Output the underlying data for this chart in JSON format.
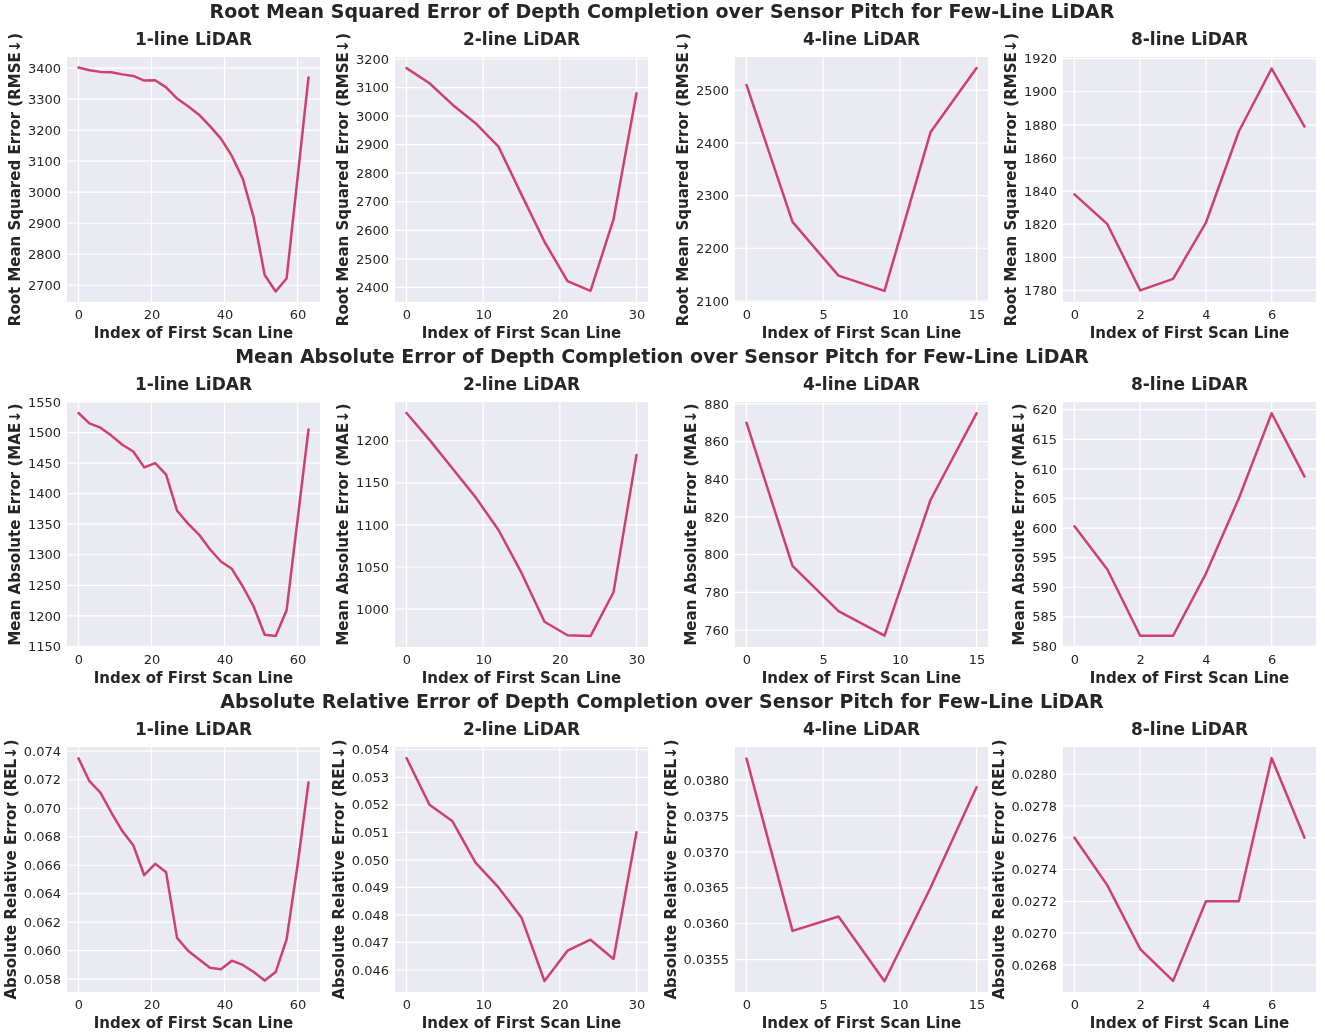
{
  "chart_data": [
    {
      "type": "line",
      "title": "1-line LiDAR",
      "annotations": [
        "Root Mean Squared Error of Depth Completion over Sensor Pitch for Few-Line LiDAR"
      ],
      "xlabel": "Index of First Scan Line",
      "ylabel": "Root Mean Squared Error (RMSE↓)",
      "x": [
        0,
        3,
        6,
        9,
        12,
        15,
        18,
        21,
        24,
        27,
        30,
        33,
        36,
        39,
        42,
        45,
        48,
        51,
        54,
        57,
        60,
        63
      ],
      "series": [
        {
          "color": "#d0406f",
          "values": [
            3402,
            3393,
            3388,
            3387,
            3380,
            3375,
            3360,
            3361,
            3338,
            3302,
            3277,
            3250,
            3213,
            3173,
            3117,
            3043,
            2918,
            2733,
            2680,
            2722,
            3046,
            3370
          ]
        }
      ],
      "xlim": [
        -3.15,
        66.15
      ],
      "xticks": [
        0,
        20,
        40,
        60
      ],
      "ylim": [
        2646,
        3436
      ],
      "yticks": [
        2700,
        2800,
        2900,
        3000,
        3100,
        3200,
        3300,
        3400
      ],
      "grid": true
    },
    {
      "type": "line",
      "title": "2-line LiDAR",
      "xlabel": "Index of First Scan Line",
      "ylabel": "Root Mean Squared Error (RMSE↓)",
      "x": [
        0,
        3,
        6,
        9,
        12,
        15,
        18,
        21,
        24,
        27,
        30
      ],
      "series": [
        {
          "color": "#d0406f",
          "values": [
            3168,
            3115,
            3040,
            2975,
            2893,
            2725,
            2560,
            2422,
            2388,
            2638,
            3080
          ]
        }
      ],
      "xlim": [
        -1.5,
        31.5
      ],
      "xticks": [
        0,
        10,
        20,
        30
      ],
      "ylim": [
        2349,
        3207
      ],
      "yticks": [
        2400,
        2500,
        2600,
        2700,
        2800,
        2900,
        3000,
        3100,
        3200
      ],
      "grid": true
    },
    {
      "type": "line",
      "title": "4-line LiDAR",
      "xlabel": "Index of First Scan Line",
      "ylabel": "Root Mean Squared Error (RMSE↓)",
      "x": [
        0,
        3,
        6,
        9,
        12,
        15
      ],
      "series": [
        {
          "color": "#d0406f",
          "values": [
            2510,
            2250,
            2148,
            2119,
            2420,
            2542
          ]
        }
      ],
      "xlim": [
        -0.75,
        15.75
      ],
      "xticks": [
        0,
        5,
        10,
        15
      ],
      "ylim": [
        2098,
        2563
      ],
      "yticks": [
        2100,
        2200,
        2300,
        2400,
        2500
      ],
      "grid": true
    },
    {
      "type": "line",
      "title": "8-line LiDAR",
      "xlabel": "Index of First Scan Line",
      "ylabel": "Root Mean Squared Error (RMSE↓)",
      "x": [
        0,
        1,
        2,
        3,
        4,
        5,
        6,
        7
      ],
      "series": [
        {
          "color": "#d0406f",
          "values": [
            1838,
            1820,
            1780,
            1787,
            1821,
            1876,
            1914,
            1879
          ]
        }
      ],
      "xlim": [
        -0.35,
        7.35
      ],
      "xticks": [
        0,
        2,
        4,
        6
      ],
      "ylim": [
        1773,
        1921
      ],
      "yticks": [
        1780,
        1800,
        1820,
        1840,
        1860,
        1880,
        1900,
        1920
      ],
      "grid": true
    },
    {
      "type": "line",
      "title": "1-line LiDAR",
      "annotations": [
        "Mean Absolute Error of Depth Completion over Sensor Pitch for Few-Line LiDAR"
      ],
      "xlabel": "Index of First Scan Line",
      "ylabel": "Mean Absolute Error (MAE↓)",
      "x": [
        0,
        3,
        6,
        9,
        12,
        15,
        18,
        21,
        24,
        27,
        30,
        33,
        36,
        39,
        42,
        45,
        48,
        51,
        54,
        57,
        60,
        63
      ],
      "series": [
        {
          "color": "#d0406f",
          "values": [
            1532,
            1515,
            1508,
            1495,
            1480,
            1469,
            1443,
            1450,
            1431,
            1372,
            1351,
            1333,
            1309,
            1289,
            1277,
            1248,
            1215,
            1169,
            1167,
            1209,
            1357,
            1505
          ]
        }
      ],
      "xlim": [
        -3.15,
        66.15
      ],
      "xticks": [
        0,
        20,
        40,
        60
      ],
      "ylim": [
        1149,
        1550
      ],
      "yticks": [
        1150,
        1200,
        1250,
        1300,
        1350,
        1400,
        1450,
        1500,
        1550
      ],
      "grid": true
    },
    {
      "type": "line",
      "title": "2-line LiDAR",
      "xlabel": "Index of First Scan Line",
      "ylabel": "Mean Absolute Error (MAE↓)",
      "x": [
        0,
        3,
        6,
        9,
        12,
        15,
        18,
        21,
        24,
        27,
        30
      ],
      "series": [
        {
          "color": "#d0406f",
          "values": [
            1233,
            1201,
            1167,
            1133,
            1094,
            1043,
            985,
            969,
            968,
            1020,
            1183
          ]
        }
      ],
      "xlim": [
        -1.5,
        31.5
      ],
      "xticks": [
        0,
        10,
        20,
        30
      ],
      "ylim": [
        955,
        1246
      ],
      "yticks": [
        1000,
        1050,
        1100,
        1150,
        1200
      ],
      "grid": true
    },
    {
      "type": "line",
      "title": "4-line LiDAR",
      "xlabel": "Index of First Scan Line",
      "ylabel": "Mean Absolute Error (MAE↓)",
      "x": [
        0,
        3,
        6,
        9,
        12,
        15
      ],
      "series": [
        {
          "color": "#d0406f",
          "values": [
            870,
            794,
            770,
            757,
            829,
            875
          ]
        }
      ],
      "xlim": [
        -0.75,
        15.75
      ],
      "xticks": [
        0,
        5,
        10,
        15
      ],
      "ylim": [
        751,
        881
      ],
      "yticks": [
        760,
        780,
        800,
        820,
        840,
        860,
        880
      ],
      "grid": true
    },
    {
      "type": "line",
      "title": "8-line LiDAR",
      "xlabel": "Index of First Scan Line",
      "ylabel": "Mean Absolute Error (MAE↓)",
      "x": [
        0,
        1,
        2,
        3,
        4,
        5,
        6,
        7
      ],
      "series": [
        {
          "color": "#d0406f",
          "values": [
            600.3,
            593,
            581.8,
            581.8,
            592.3,
            605,
            619.4,
            608.7
          ]
        }
      ],
      "xlim": [
        -0.35,
        7.35
      ],
      "xticks": [
        0,
        2,
        4,
        6
      ],
      "ylim": [
        579.9,
        621.3
      ],
      "yticks": [
        580,
        585,
        590,
        595,
        600,
        605,
        610,
        615,
        620
      ],
      "grid": true
    },
    {
      "type": "line",
      "title": "1-line LiDAR",
      "annotations": [
        "Absolute Relative Error of Depth Completion over Sensor Pitch for Few-Line LiDAR"
      ],
      "xlabel": "Index of First Scan Line",
      "ylabel": "Absolute Relative Error (REL↓)",
      "x": [
        0,
        3,
        6,
        9,
        12,
        15,
        18,
        21,
        24,
        27,
        30,
        33,
        36,
        39,
        42,
        45,
        48,
        51,
        54,
        57,
        60,
        63
      ],
      "series": [
        {
          "color": "#d0406f",
          "values": [
            0.0735,
            0.0719,
            0.0711,
            0.0697,
            0.0684,
            0.0674,
            0.0653,
            0.0661,
            0.0655,
            0.0609,
            0.06,
            0.0594,
            0.0588,
            0.0587,
            0.0593,
            0.059,
            0.0585,
            0.0579,
            0.0585,
            0.0608,
            0.066,
            0.0718
          ]
        }
      ],
      "xlim": [
        -3.15,
        66.15
      ],
      "xticks": [
        0,
        20,
        40,
        60
      ],
      "ylim": [
        0.0571,
        0.0743
      ],
      "yticks": [
        {
          "value": 0.058,
          "label": "0.058"
        },
        {
          "value": 0.06,
          "label": "0.060"
        },
        {
          "value": 0.062,
          "label": "0.062"
        },
        {
          "value": 0.064,
          "label": "0.064"
        },
        {
          "value": 0.066,
          "label": "0.066"
        },
        {
          "value": 0.068,
          "label": "0.068"
        },
        {
          "value": 0.07,
          "label": "0.070"
        },
        {
          "value": 0.072,
          "label": "0.072"
        },
        {
          "value": 0.074,
          "label": "0.074"
        }
      ],
      "grid": true
    },
    {
      "type": "line",
      "title": "2-line LiDAR",
      "xlabel": "Index of First Scan Line",
      "ylabel": "Absolute Relative Error (REL↓)",
      "x": [
        0,
        3,
        6,
        9,
        12,
        15,
        18,
        21,
        24,
        27,
        30
      ],
      "series": [
        {
          "color": "#d0406f",
          "values": [
            0.0537,
            0.052,
            0.0514,
            0.0499,
            0.049,
            0.0479,
            0.0456,
            0.0467,
            0.0471,
            0.0464,
            0.051
          ]
        }
      ],
      "xlim": [
        -1.5,
        31.5
      ],
      "xticks": [
        0,
        10,
        20,
        30
      ],
      "ylim": [
        0.0452,
        0.0541
      ],
      "yticks": [
        {
          "value": 0.046,
          "label": "0.046"
        },
        {
          "value": 0.047,
          "label": "0.047"
        },
        {
          "value": 0.048,
          "label": "0.048"
        },
        {
          "value": 0.049,
          "label": "0.049"
        },
        {
          "value": 0.05,
          "label": "0.050"
        },
        {
          "value": 0.051,
          "label": "0.051"
        },
        {
          "value": 0.052,
          "label": "0.052"
        },
        {
          "value": 0.053,
          "label": "0.053"
        },
        {
          "value": 0.054,
          "label": "0.054"
        }
      ],
      "grid": true
    },
    {
      "type": "line",
      "title": "4-line LiDAR",
      "xlabel": "Index of First Scan Line",
      "ylabel": "Absolute Relative Error (REL↓)",
      "x": [
        0,
        3,
        6,
        9,
        12,
        15
      ],
      "series": [
        {
          "color": "#d0406f",
          "values": [
            0.0383,
            0.0359,
            0.0361,
            0.0352,
            0.0365,
            0.0379
          ]
        }
      ],
      "xlim": [
        -0.75,
        15.75
      ],
      "xticks": [
        0,
        5,
        10,
        15
      ],
      "ylim": [
        0.03505,
        0.03846
      ],
      "yticks": [
        {
          "value": 0.0355,
          "label": "0.0355"
        },
        {
          "value": 0.036,
          "label": "0.0360"
        },
        {
          "value": 0.0365,
          "label": "0.0365"
        },
        {
          "value": 0.037,
          "label": "0.0370"
        },
        {
          "value": 0.0375,
          "label": "0.0375"
        },
        {
          "value": 0.038,
          "label": "0.0380"
        }
      ],
      "grid": true
    },
    {
      "type": "line",
      "title": "8-line LiDAR",
      "xlabel": "Index of First Scan Line",
      "ylabel": "Absolute Relative Error (REL↓)",
      "x": [
        0,
        1,
        2,
        3,
        4,
        5,
        6,
        7
      ],
      "series": [
        {
          "color": "#d0406f",
          "values": [
            0.0276,
            0.0273,
            0.0269,
            0.0267,
            0.0272,
            0.0272,
            0.0281,
            0.0276
          ]
        }
      ],
      "xlim": [
        -0.35,
        7.35
      ],
      "xticks": [
        0,
        2,
        4,
        6
      ],
      "ylim": [
        0.02663,
        0.02817
      ],
      "yticks": [
        {
          "value": 0.0268,
          "label": "0.0268"
        },
        {
          "value": 0.027,
          "label": "0.0270"
        },
        {
          "value": 0.0272,
          "label": "0.0272"
        },
        {
          "value": 0.0274,
          "label": "0.0274"
        },
        {
          "value": 0.0276,
          "label": "0.0276"
        },
        {
          "value": 0.0278,
          "label": "0.0278"
        },
        {
          "value": 0.028,
          "label": "0.0280"
        }
      ],
      "grid": true
    }
  ]
}
